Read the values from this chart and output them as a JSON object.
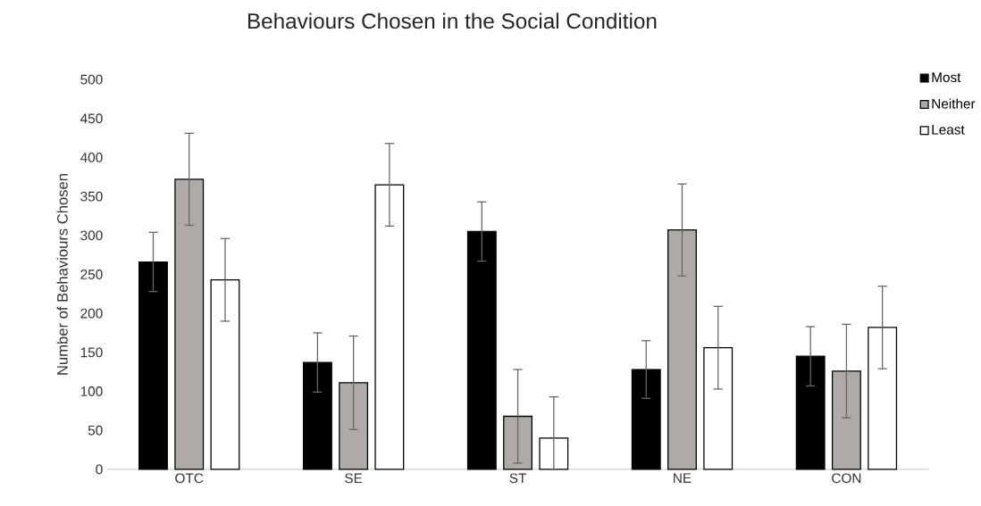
{
  "chart_data": {
    "type": "bar",
    "title": "Behaviours Chosen in the Social Condition",
    "ylabel": "Number of Behaviours Chosen",
    "categories": [
      "OTC",
      "SE",
      "ST",
      "NE",
      "CON"
    ],
    "series": [
      {
        "name": "Most",
        "color": "#000000",
        "values": [
          266,
          137,
          305,
          128,
          145
        ],
        "errors": [
          38,
          38,
          38,
          37,
          38
        ]
      },
      {
        "name": "Neither",
        "color": "#aeaaaa",
        "values": [
          372,
          111,
          68,
          307,
          126
        ],
        "errors": [
          59,
          60,
          60,
          59,
          60
        ]
      },
      {
        "name": "Least",
        "color": "#ffffff",
        "values": [
          243,
          365,
          40,
          156,
          182
        ],
        "errors": [
          53,
          53,
          [
            0,
            93
          ],
          53,
          53
        ]
      }
    ],
    "ylim": [
      0,
      500
    ],
    "yticks": [
      0,
      50,
      100,
      150,
      200,
      250,
      300,
      350,
      400,
      450,
      500
    ],
    "grid": false,
    "legend": "top right"
  }
}
